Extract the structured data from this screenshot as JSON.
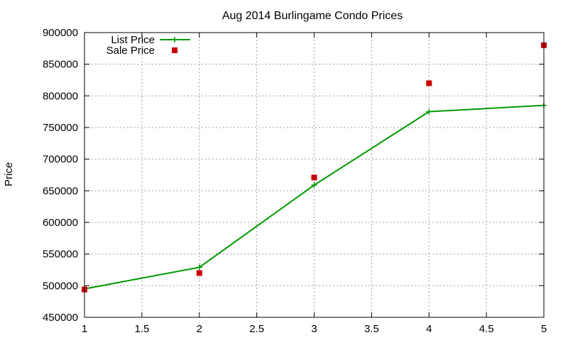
{
  "chart_data": {
    "type": "line",
    "title": "Aug 2014 Burlingame Condo Prices",
    "xlabel": "",
    "ylabel": "Price",
    "xlim": [
      1,
      5
    ],
    "ylim": [
      450000,
      900000
    ],
    "xticks": [
      1,
      1.5,
      2,
      2.5,
      3,
      3.5,
      4,
      4.5,
      5
    ],
    "yticks": [
      450000,
      500000,
      550000,
      600000,
      650000,
      700000,
      750000,
      800000,
      850000,
      900000
    ],
    "grid": true,
    "legend_position": "top-left",
    "series": [
      {
        "name": "List Price",
        "style": "linespoints",
        "marker": "plus",
        "color": "#009900",
        "x": [
          1,
          2,
          3,
          4,
          5
        ],
        "values": [
          495000,
          529000,
          659000,
          775000,
          785000
        ]
      },
      {
        "name": "Sale Price",
        "style": "points",
        "marker": "square",
        "color": "#cc0000",
        "x": [
          1,
          2,
          3,
          4,
          5
        ],
        "values": [
          494000,
          520000,
          671000,
          820000,
          880000
        ]
      }
    ]
  }
}
